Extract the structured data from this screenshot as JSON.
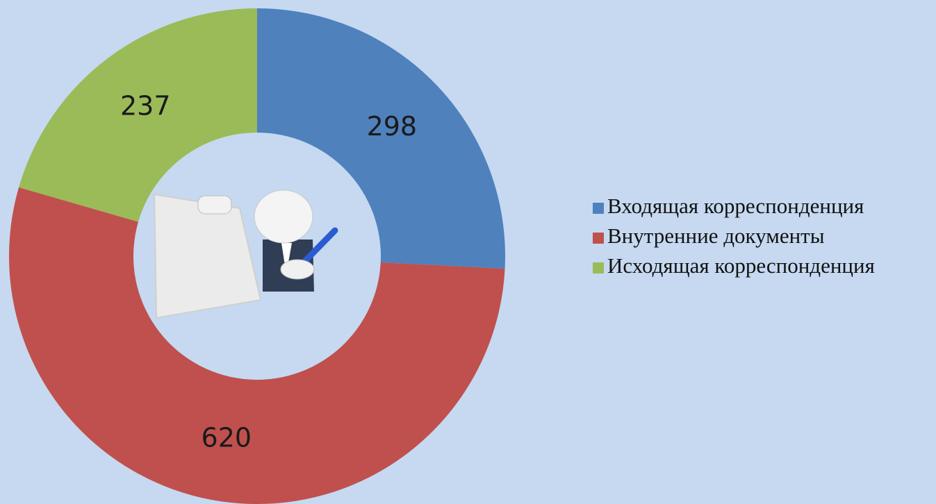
{
  "chart_data": {
    "type": "donut",
    "categories": [
      "Входящая корреспонденция",
      "Внутренние документы",
      "Исходящая корреспонденция"
    ],
    "values": [
      298,
      620,
      237
    ],
    "colors": [
      "#4f81bd",
      "#c0504d",
      "#9bbb59"
    ],
    "legend": "right"
  }
}
